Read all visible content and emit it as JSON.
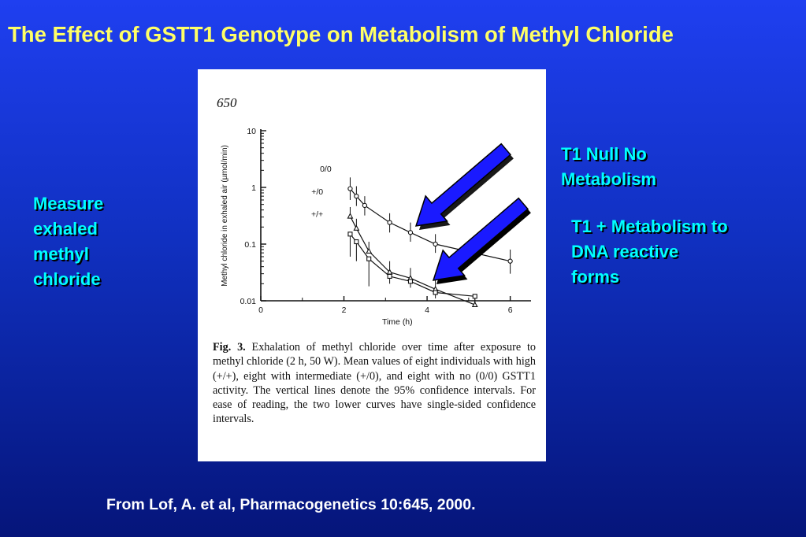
{
  "slide": {
    "title": "The Effect of GSTT1 Genotype on Metabolism of Methyl Chloride",
    "left_text": "Measure exhaled methyl chloride",
    "right_top_text": "T1 Null No Metabolism",
    "right_bottom_text": "T1 + Metabolism to DNA reactive forms",
    "citation": "From Lof, A. et al, Pharmacogenetics 10:645, 2000.",
    "colors": {
      "title": "#ffff66",
      "annotation": "#00ffff",
      "arrow": "#1a1aff"
    }
  },
  "figure": {
    "page_number": "650",
    "caption_label": "Fig. 3.",
    "caption_text": "Exhalation of methyl chloride over time after exposure to methyl chloride (2 h, 50 W). Mean values of eight individuals with high (+/+), eight with intermediate (+/0), and eight with no (0/0) GSTT1 activity. The vertical lines denote the 95% confidence intervals. For ease of reading, the two lower curves have single-sided confidence intervals."
  },
  "chart_data": {
    "type": "line",
    "xlabel": "Time (h)",
    "ylabel": "Methyl chloride in exhaled air (µmol/min)",
    "xlim": [
      0,
      6.5
    ],
    "ylim": [
      0.01,
      10
    ],
    "y_scale": "log",
    "x_ticks": [
      "0",
      "2",
      "4",
      "6"
    ],
    "y_ticks": [
      "10",
      "1",
      "0.1",
      "0.01"
    ],
    "series": [
      {
        "name": "0/0",
        "marker": "circle",
        "x": [
          2.15,
          2.3,
          2.5,
          3.1,
          3.6,
          4.2,
          6.0
        ],
        "y": [
          0.95,
          0.7,
          0.48,
          0.24,
          0.16,
          0.1,
          0.05
        ],
        "ci_high": [
          1.5,
          1.05,
          0.7,
          0.35,
          0.24,
          0.15,
          0.08
        ],
        "ci_low": [
          0.6,
          0.47,
          0.32,
          0.16,
          0.11,
          0.07,
          0.03
        ]
      },
      {
        "name": "+/0",
        "marker": "triangle",
        "x": [
          2.15,
          2.3,
          2.6,
          3.1,
          3.6,
          4.2,
          5.15
        ],
        "y": [
          0.31,
          0.19,
          0.075,
          0.032,
          0.025,
          0.016,
          0.0085
        ],
        "ci_high": [
          0.45,
          0.28,
          0.11,
          0.05,
          0.038,
          0.024,
          0.013
        ]
      },
      {
        "name": "+/+",
        "marker": "square",
        "x": [
          2.15,
          2.3,
          2.6,
          3.1,
          3.6,
          4.2,
          5.15
        ],
        "y": [
          0.15,
          0.11,
          0.055,
          0.027,
          0.022,
          0.014,
          0.012
        ],
        "ci_low": [
          0.06,
          0.05,
          0.018,
          0.02,
          0.017,
          0.011,
          0.009
        ]
      }
    ]
  }
}
